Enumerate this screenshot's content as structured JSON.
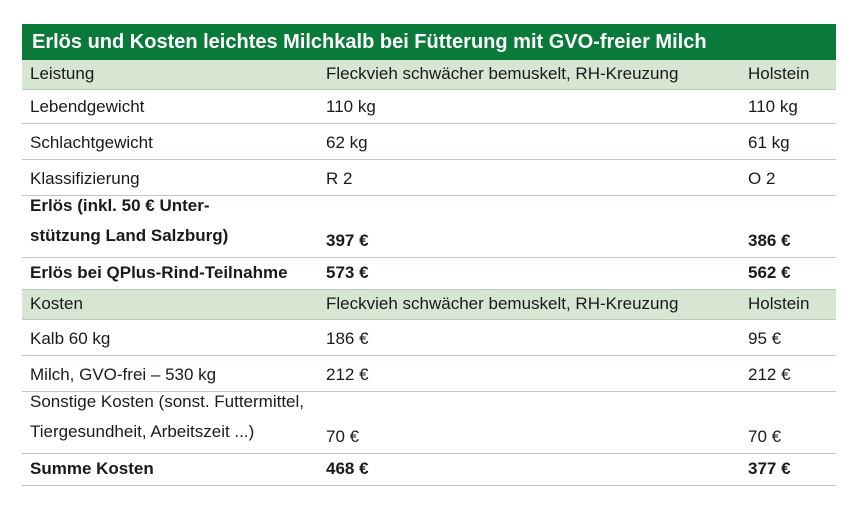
{
  "title": "Erlös und Kosten leichtes Milchkalb bei Fütterung mit GVO-freier Milch",
  "section_revenue": {
    "header": [
      "Leistung",
      "Fleckvieh schwächer bemuskelt, RH-Kreuzung",
      "Holstein"
    ],
    "rows": [
      {
        "label": "Lebendgewicht",
        "fv": "110 kg",
        "hol": "110 kg"
      },
      {
        "label": "Schlachtgewicht",
        "fv": "62 kg",
        "hol": "61 kg"
      },
      {
        "label": "Klassifizierung",
        "fv": "R 2",
        "hol": "O 2"
      }
    ],
    "bold_rows": [
      {
        "label_line1": "Erlös (inkl. 50 € Unter-",
        "label_line2": "stützung Land Salzburg)",
        "fv": "397 €",
        "hol": "386 €"
      },
      {
        "label": "Erlös bei QPlus-Rind-Teilnahme",
        "fv": "573 €",
        "hol": "562 €"
      }
    ]
  },
  "section_costs": {
    "header": [
      "Kosten",
      "Fleckvieh schwächer bemuskelt, RH-Kreuzung",
      "Holstein"
    ],
    "rows": [
      {
        "label": "Kalb 60 kg",
        "fv": "186 €",
        "hol": "95 €"
      },
      {
        "label": "Milch, GVO-frei – 530 kg",
        "fv": "212 €",
        "hol": "212 €"
      }
    ],
    "other": {
      "label_line1": "Sonstige Kosten (sonst. Futtermittel,",
      "label_line2": "Tiergesundheit, Arbeitszeit ...)",
      "fv": "70 €",
      "hol": "70 €"
    },
    "total": {
      "label": "Summe Kosten",
      "fv": "468 €",
      "hol": "377 €"
    }
  },
  "colors": {
    "title_bg": "#0a7a3a",
    "header_bg": "#d6e6d3",
    "rule": "#b9ccb9"
  }
}
